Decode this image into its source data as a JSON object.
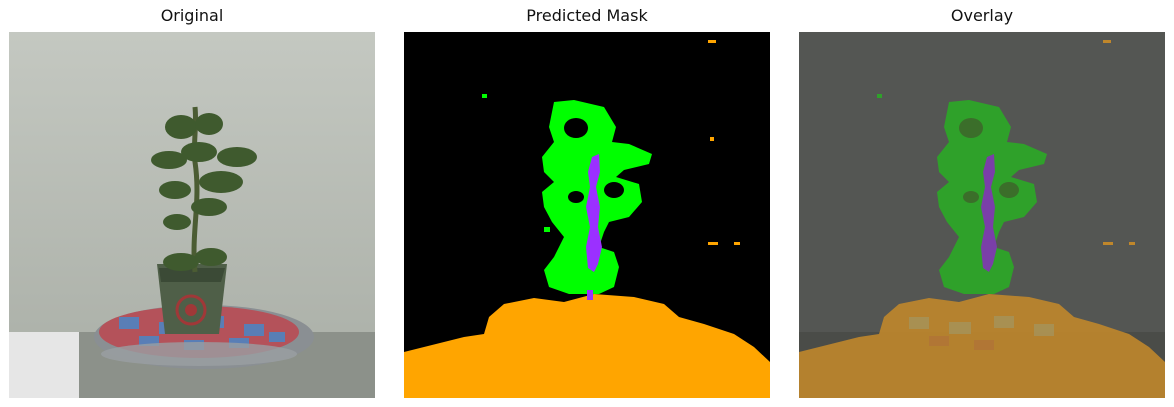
{
  "figure": {
    "panels": [
      {
        "id": "original",
        "title": "Original"
      },
      {
        "id": "predicted-mask",
        "title": "Predicted Mask"
      },
      {
        "id": "overlay",
        "title": "Overlay"
      }
    ]
  },
  "mask_classes": [
    {
      "name": "leaf",
      "color": "#00ff00"
    },
    {
      "name": "stem",
      "color": "#9b30ff"
    },
    {
      "name": "soil/pot",
      "color": "#ffa500"
    },
    {
      "name": "background",
      "color": "#000000"
    }
  ]
}
